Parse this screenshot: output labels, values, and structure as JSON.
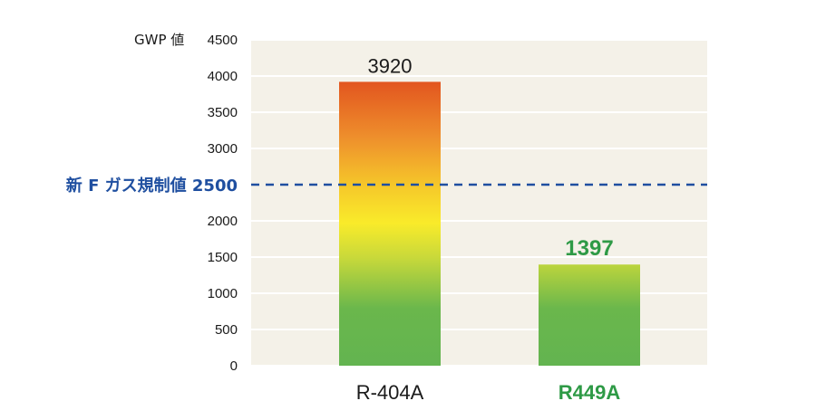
{
  "chart_data": {
    "type": "bar",
    "ylabel": "GWP 値",
    "ylim": [
      0,
      4500
    ],
    "yticks": [
      0,
      500,
      1000,
      1500,
      2000,
      2500,
      3000,
      3500,
      4000,
      4500
    ],
    "grid": true,
    "categories": [
      "R-404A",
      "R449A"
    ],
    "values": [
      3920,
      1397
    ],
    "value_labels": [
      "3920",
      "1397"
    ],
    "highlight_category": "R449A",
    "reference_line": {
      "value": 2500,
      "label": "新 F ガス規制値 2500",
      "style": "dashed",
      "color": "#1f4fa0"
    },
    "colors": {
      "plot_background": "#f4f1e8",
      "bar_top": "#e2541f",
      "bar_mid": "#f7e028",
      "bar_bottom": "#63b450",
      "highlight_text": "#2e9a46"
    }
  }
}
